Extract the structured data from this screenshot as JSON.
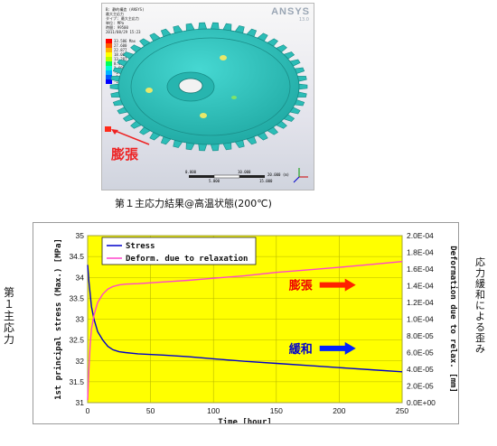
{
  "figure": {
    "fea_caption": "第１主応力結果@高温状態(200℃)",
    "callout_label": "膨張",
    "logo": "ANSYS",
    "logo_version": "13.0",
    "info_lines": [
      "B: 静的構造 (ANSYS)",
      "最大主応力",
      "タイプ: 最大主応力",
      "単位: MPa",
      "時間: 99500",
      "2011/08/29 15:23"
    ],
    "legend_values": [
      "33.586 Max",
      "27.600",
      "22.877",
      "18.082",
      "13.287",
      "8.4913",
      "3.6958",
      "-1.0998",
      "-5.8954",
      "-10.61 Min"
    ],
    "legend_colors": [
      "#ff0000",
      "#ff5a00",
      "#ffb400",
      "#ffff00",
      "#b4ff00",
      "#00ff5a",
      "#00ffd2",
      "#00b4ff",
      "#005aff",
      "#0000ff"
    ],
    "scale_ticks": [
      "0.000",
      "10.000",
      "20.000 (m)",
      "5.000",
      "15.000"
    ],
    "colors": {
      "gear": "#2ec5bf",
      "gear_dark": "#1f9a95"
    }
  },
  "side_labels": {
    "left": "第１主応力",
    "right": "応力緩和による歪み"
  },
  "chart_data": {
    "type": "line",
    "title": "",
    "xlabel": "Time [hour]",
    "ylabel_left": "1st principal stress (Max.) [MPa]",
    "ylabel_right": "Deformation due to relax. [mm]",
    "xlim": [
      0,
      250
    ],
    "ylim_left": [
      31,
      35
    ],
    "ylim_right": [
      0,
      0.0002
    ],
    "x_ticks": [
      "0",
      "50",
      "100",
      "150",
      "200",
      "250"
    ],
    "y_left_ticks": [
      "31",
      "31.5",
      "32",
      "32.5",
      "33",
      "33.5",
      "34",
      "34.5",
      "35"
    ],
    "y_right_ticks": [
      "0.0E+00",
      "2.0E-05",
      "4.0E-05",
      "6.0E-05",
      "8.0E-05",
      "1.0E-04",
      "1.2E-04",
      "1.4E-04",
      "1.6E-04",
      "1.8E-04",
      "2.0E-04"
    ],
    "plot_background": "#ffff00",
    "grid": true,
    "legend_position": "top-left",
    "series": [
      {
        "name": "Stress",
        "axis": "left",
        "color": "#0000cc",
        "x": [
          0,
          1,
          2,
          3,
          5,
          8,
          12,
          16,
          20,
          25,
          30,
          40,
          60,
          80,
          100,
          125,
          150,
          175,
          200,
          225,
          250
        ],
        "y": [
          34.3,
          33.9,
          33.6,
          33.3,
          33.0,
          32.7,
          32.5,
          32.35,
          32.27,
          32.22,
          32.2,
          32.17,
          32.14,
          32.1,
          32.05,
          31.99,
          31.94,
          31.89,
          31.84,
          31.79,
          31.74
        ]
      },
      {
        "name": "Deform. due to relaxation",
        "axis": "right",
        "color": "#ff44cc",
        "x": [
          0,
          1,
          2,
          3,
          5,
          8,
          12,
          16,
          20,
          25,
          30,
          40,
          60,
          80,
          100,
          125,
          150,
          175,
          200,
          225,
          250
        ],
        "y": [
          3e-06,
          4e-05,
          7e-05,
          8.8e-05,
          0.000105,
          0.00012,
          0.00013,
          0.000136,
          0.000139,
          0.000141,
          0.000142,
          0.0001425,
          0.0001445,
          0.0001465,
          0.000149,
          0.000152,
          0.000156,
          0.000159,
          0.000162,
          0.0001655,
          0.000169
        ]
      }
    ],
    "annotations": [
      {
        "text": "膨張",
        "color": "#ee0000",
        "arrow_color": "#ff2200",
        "x": 160,
        "y_right": 0.000141
      },
      {
        "text": "緩和",
        "color": "#0000cc",
        "arrow_color": "#0022ff",
        "x": 160,
        "y_right": 6.5e-05
      }
    ]
  }
}
